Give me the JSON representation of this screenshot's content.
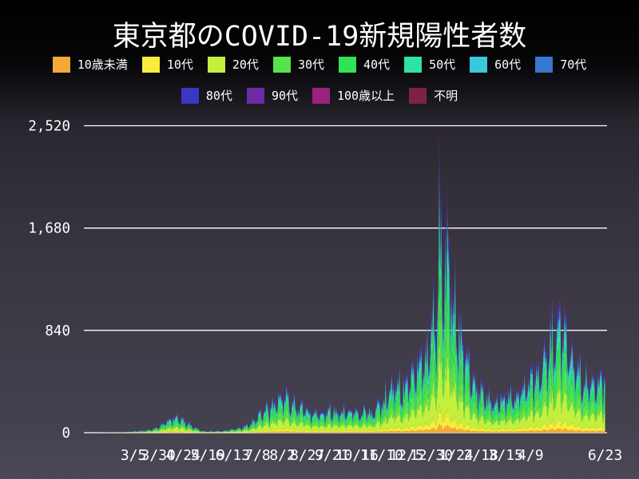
{
  "title": "東京都のCOVID-19新規陽性者数",
  "legend": [
    {
      "label": "10歳未満",
      "color": "#f5a83a",
      "share": 0.032
    },
    {
      "label": "10代",
      "color": "#f7ee3a",
      "share": 0.062
    },
    {
      "label": "20代",
      "color": "#c3ef3d",
      "share": 0.23
    },
    {
      "label": "30代",
      "color": "#59e24b",
      "share": 0.19
    },
    {
      "label": "40代",
      "color": "#2ee356",
      "share": 0.15
    },
    {
      "label": "50代",
      "color": "#2fe3a4",
      "share": 0.115
    },
    {
      "label": "60代",
      "color": "#3cc7dc",
      "share": 0.07
    },
    {
      "label": "70代",
      "color": "#3478cf",
      "share": 0.06
    },
    {
      "label": "80代",
      "color": "#3a38c2",
      "share": 0.05
    },
    {
      "label": "90代",
      "color": "#6d2aa6",
      "share": 0.022
    },
    {
      "label": "100歳以上",
      "color": "#99237d",
      "share": 0.003
    },
    {
      "label": "不明",
      "color": "#7d2145",
      "share": 0.016
    }
  ],
  "chart_data": {
    "type": "area",
    "title": "東京都のCOVID-19新規陽性者数",
    "start_date": "2020-01-15",
    "end_date": "2021-06-23",
    "ylim": [
      0,
      2520
    ],
    "y_ticks": [
      {
        "label": "0",
        "value": 0
      },
      {
        "label": "840",
        "value": 840
      },
      {
        "label": "1,680",
        "value": 1680
      },
      {
        "label": "2,520",
        "value": 2520
      }
    ],
    "x_ticks": [
      {
        "label": "3/5",
        "day": 50
      },
      {
        "label": "3/30",
        "day": 75
      },
      {
        "label": "4/24",
        "day": 100
      },
      {
        "label": "5/19",
        "day": 125
      },
      {
        "label": "6/13",
        "day": 150
      },
      {
        "label": "7/8",
        "day": 175
      },
      {
        "label": "8/2",
        "day": 200
      },
      {
        "label": "8/27",
        "day": 225
      },
      {
        "label": "9/21",
        "day": 250
      },
      {
        "label": "10/16",
        "day": 275
      },
      {
        "label": "11/10",
        "day": 300
      },
      {
        "label": "12/5",
        "day": 325
      },
      {
        "label": "12/30",
        "day": 350
      },
      {
        "label": "1/24",
        "day": 375
      },
      {
        "label": "2/18",
        "day": 400
      },
      {
        "label": "3/15",
        "day": 425
      },
      {
        "label": "4/9",
        "day": 450
      },
      {
        "label": "6/23",
        "day": 525
      }
    ],
    "total_days": 526,
    "daily_total_envelope": [
      [
        0,
        0
      ],
      [
        20,
        0.5
      ],
      [
        30,
        1
      ],
      [
        38,
        4
      ],
      [
        45,
        8
      ],
      [
        50,
        11
      ],
      [
        55,
        14
      ],
      [
        60,
        18
      ],
      [
        65,
        22
      ],
      [
        70,
        32
      ],
      [
        77,
        60
      ],
      [
        84,
        110
      ],
      [
        91,
        140
      ],
      [
        98,
        108
      ],
      [
        107,
        70
      ],
      [
        114,
        32
      ],
      [
        120,
        15
      ],
      [
        127,
        11
      ],
      [
        135,
        13
      ],
      [
        142,
        18
      ],
      [
        152,
        32
      ],
      [
        161,
        50
      ],
      [
        168,
        75
      ],
      [
        177,
        165
      ],
      [
        184,
        215
      ],
      [
        191,
        245
      ],
      [
        199,
        330
      ],
      [
        206,
        280
      ],
      [
        213,
        235
      ],
      [
        220,
        215
      ],
      [
        230,
        170
      ],
      [
        244,
        175
      ],
      [
        260,
        190
      ],
      [
        274,
        185
      ],
      [
        291,
        170
      ],
      [
        300,
        255
      ],
      [
        310,
        420
      ],
      [
        321,
        385
      ],
      [
        330,
        520
      ],
      [
        337,
        620
      ],
      [
        344,
        690
      ],
      [
        351,
        1000
      ],
      [
        354,
        900
      ],
      [
        356,
        1250
      ],
      [
        358,
        1700
      ],
      [
        361,
        1250
      ],
      [
        364,
        1450
      ],
      [
        368,
        1350
      ],
      [
        372,
        1050
      ],
      [
        375,
        950
      ],
      [
        379,
        800
      ],
      [
        385,
        620
      ],
      [
        392,
        440
      ],
      [
        399,
        370
      ],
      [
        406,
        295
      ],
      [
        413,
        262
      ],
      [
        420,
        288
      ],
      [
        427,
        300
      ],
      [
        434,
        338
      ],
      [
        441,
        400
      ],
      [
        448,
        450
      ],
      [
        455,
        520
      ],
      [
        462,
        615
      ],
      [
        469,
        755
      ],
      [
        475,
        805
      ],
      [
        479,
        950
      ],
      [
        483,
        855
      ],
      [
        490,
        685
      ],
      [
        497,
        550
      ],
      [
        504,
        445
      ],
      [
        511,
        420
      ],
      [
        518,
        450
      ],
      [
        525,
        520
      ]
    ],
    "weekday_factors": [
      0.62,
      0.84,
      1.04,
      1.1,
      1.15,
      1.2,
      0.9
    ],
    "start_weekday_index": 2,
    "peak_days": [
      [
        358,
        2520
      ],
      [
        366,
        2060
      ]
    ],
    "peak": {
      "day": 358,
      "value": 2520,
      "date": "2021-01-07"
    }
  },
  "colors": {
    "grid": "#ffffff",
    "text": "#ffffff",
    "bg_top": "#000000",
    "bg_bottom": "#4a4756"
  }
}
